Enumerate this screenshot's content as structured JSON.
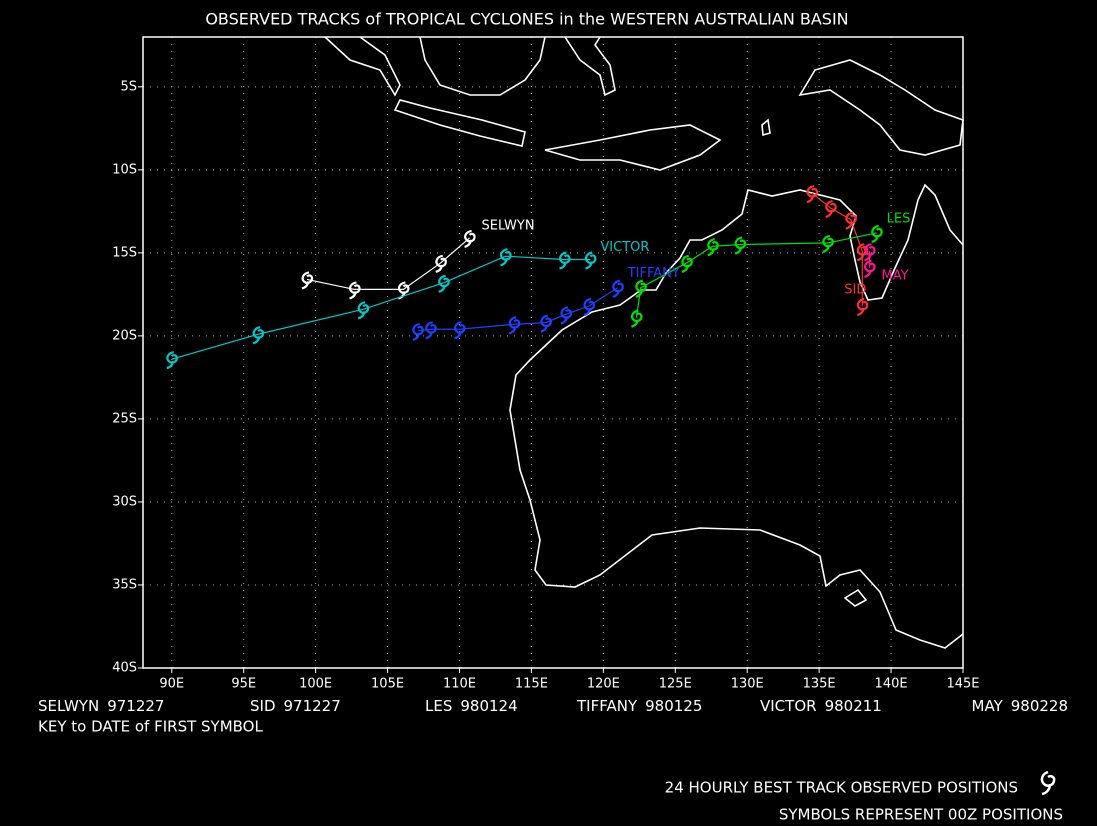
{
  "chart_data": {
    "type": "track-map",
    "title": "OBSERVED TRACKS of TROPICAL CYCLONES in the WESTERN AUSTRALIAN BASIN",
    "xlim": [
      88,
      145
    ],
    "ylim": [
      -40,
      -2
    ],
    "xticks": [
      {
        "value": 90,
        "label": "90E"
      },
      {
        "value": 95,
        "label": "95E"
      },
      {
        "value": 100,
        "label": "100E"
      },
      {
        "value": 105,
        "label": "105E"
      },
      {
        "value": 110,
        "label": "110E"
      },
      {
        "value": 115,
        "label": "115E"
      },
      {
        "value": 120,
        "label": "120E"
      },
      {
        "value": 125,
        "label": "125E"
      },
      {
        "value": 130,
        "label": "130E"
      },
      {
        "value": 135,
        "label": "135E"
      },
      {
        "value": 140,
        "label": "140E"
      },
      {
        "value": 145,
        "label": "145E"
      }
    ],
    "yticks": [
      {
        "value": -5,
        "label": "5S"
      },
      {
        "value": -10,
        "label": "10S"
      },
      {
        "value": -15,
        "label": "15S"
      },
      {
        "value": -20,
        "label": "20S"
      },
      {
        "value": -25,
        "label": "25S"
      },
      {
        "value": -30,
        "label": "30S"
      },
      {
        "value": -35,
        "label": "35S"
      },
      {
        "value": -40,
        "label": "40S"
      }
    ],
    "grid": true,
    "series": [
      {
        "name": "SELWYN",
        "date": "971227",
        "color": "#ffffff",
        "lon": [
          99.4,
          102.7,
          106.1,
          108.7,
          110.7
        ],
        "lat": [
          -16.6,
          -17.2,
          -17.2,
          -15.6,
          -14.1
        ]
      },
      {
        "name": "SID",
        "date": "971227",
        "color": "#ff3030",
        "lon": [
          134.5,
          135.8,
          137.2,
          138.0,
          138.0
        ],
        "lat": [
          -11.4,
          -12.3,
          -13.0,
          -14.9,
          -18.2
        ]
      },
      {
        "name": "LES",
        "date": "980124",
        "color": "#00e000",
        "lon": [
          122.3,
          122.6,
          125.8,
          127.6,
          129.5,
          135.6,
          139.0
        ],
        "lat": [
          -18.9,
          -17.1,
          -15.6,
          -14.6,
          -14.5,
          -14.4,
          -13.8
        ]
      },
      {
        "name": "TIFFANY",
        "date": "980125",
        "color": "#2040ff",
        "lon": [
          107.1,
          108.0,
          110.0,
          113.8,
          116.0,
          117.4,
          119.0,
          121.0
        ],
        "lat": [
          -19.7,
          -19.6,
          -19.6,
          -19.3,
          -19.2,
          -18.7,
          -18.2,
          -17.1
        ]
      },
      {
        "name": "VICTOR",
        "date": "980211",
        "color": "#00c8c8",
        "lon": [
          90.0,
          96.0,
          103.3,
          108.9,
          113.2,
          117.3,
          119.1
        ],
        "lat": [
          -21.4,
          -19.9,
          -18.4,
          -16.8,
          -15.2,
          -15.4,
          -15.4
        ]
      },
      {
        "name": "MAY",
        "date": "980228",
        "color": "#ff1493",
        "lon": [
          138.5,
          138.5
        ],
        "lat": [
          -14.9,
          -15.9
        ]
      }
    ],
    "key_title": "KEY to DATE of FIRST SYMBOL",
    "footer": [
      "24 HOURLY BEST TRACK OBSERVED POSITIONS",
      "SYMBOLS REPRESENT 00Z POSITIONS"
    ]
  }
}
